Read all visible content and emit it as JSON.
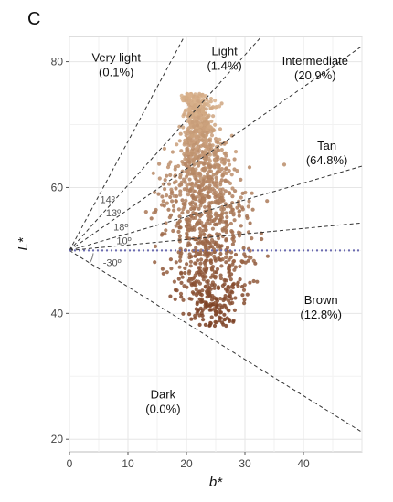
{
  "panel_letter": "C",
  "chart_data": {
    "type": "scatter",
    "xlabel": "b*",
    "ylabel": "L*",
    "xlim": [
      0,
      50
    ],
    "ylim": [
      18,
      84
    ],
    "x_ticks": [
      0,
      10,
      20,
      30,
      40
    ],
    "y_ticks": [
      20,
      40,
      60,
      80
    ],
    "grid": true,
    "reference_line": {
      "y": 50,
      "style": "dotted",
      "color": "#6b6bb0"
    },
    "boundary_angles_deg": [
      30,
      14,
      13,
      18,
      10,
      -30
    ],
    "angle_labels": [
      {
        "text": "14º",
        "x": 6.5,
        "y": 57.5
      },
      {
        "text": "13º",
        "x": 7.5,
        "y": 55.4
      },
      {
        "text": "18º",
        "x": 8.8,
        "y": 53.2
      },
      {
        "text": "10º",
        "x": 9.3,
        "y": 51.0
      },
      {
        "text": "-30º",
        "x": 7.3,
        "y": 47.5
      }
    ],
    "regions": [
      {
        "name": "Very light",
        "percent": "(0.1%)",
        "x": 8,
        "y": 80,
        "anchor": "middle"
      },
      {
        "name": "Light",
        "percent": "(1.4%)",
        "x": 26.5,
        "y": 81,
        "anchor": "middle"
      },
      {
        "name": "Intermediate",
        "percent": "(20.9%)",
        "x": 42,
        "y": 79.5,
        "anchor": "middle"
      },
      {
        "name": "Tan",
        "percent": "(64.8%)",
        "x": 44,
        "y": 66,
        "anchor": "middle"
      },
      {
        "name": "Brown",
        "percent": "(12.8%)",
        "x": 43,
        "y": 41.5,
        "anchor": "middle"
      },
      {
        "name": "Dark",
        "percent": "(0.0%)",
        "x": 16,
        "y": 26.5,
        "anchor": "middle"
      }
    ],
    "point_cloud": {
      "count": 1400,
      "seed": 7,
      "x_center": 25,
      "x_spread": 5.5,
      "y_range": [
        38,
        75
      ],
      "color_light": "#d9b28c",
      "color_dark": "#7a3e22"
    }
  }
}
